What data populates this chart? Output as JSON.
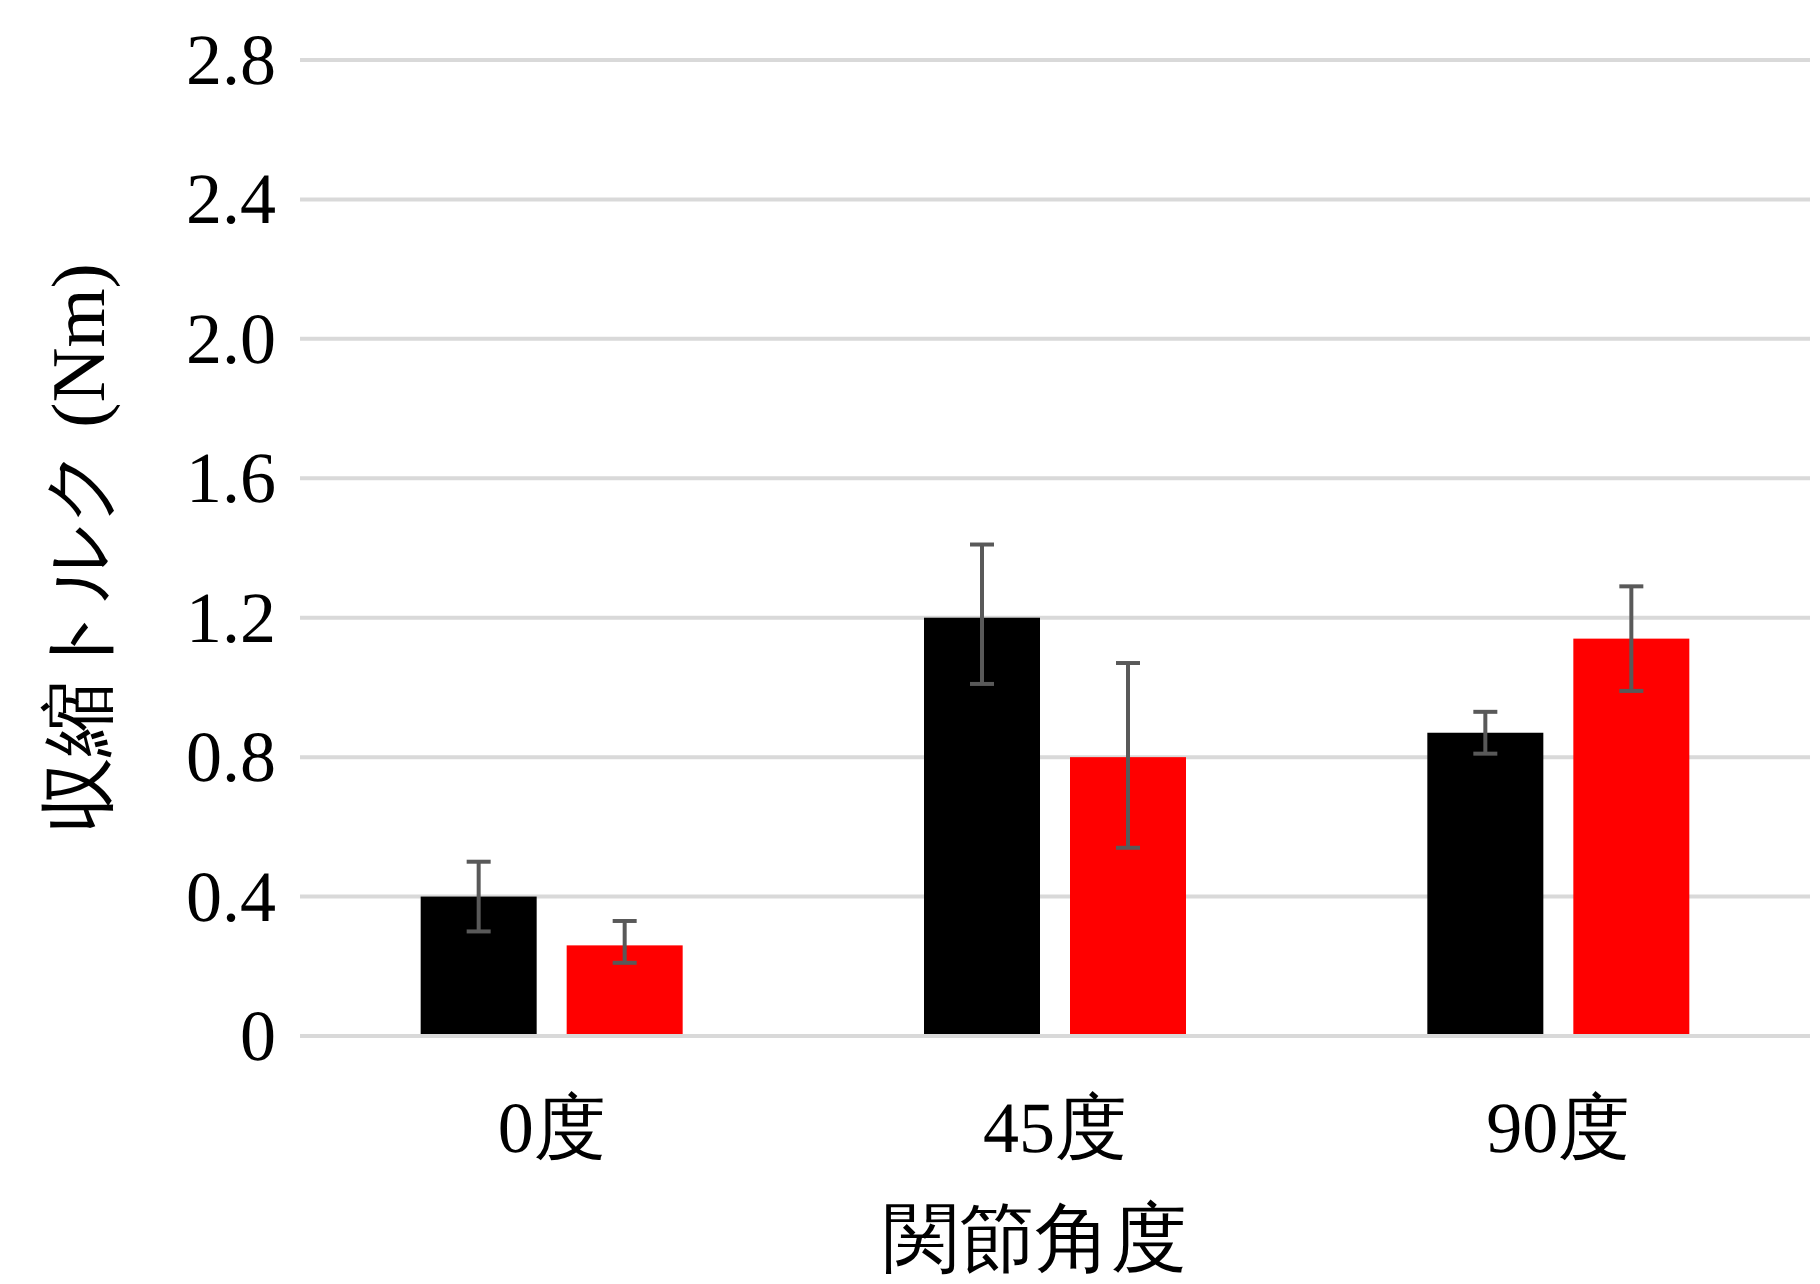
{
  "chart_data": {
    "type": "bar",
    "xlabel": "関節角度",
    "ylabel": "収縮トルク (Nm)",
    "categories": [
      "0度",
      "45度",
      "90度"
    ],
    "series": [
      {
        "color": "#000000",
        "values": [
          0.4,
          1.2,
          0.87
        ],
        "errors": [
          [
            0.3,
            0.5
          ],
          [
            1.01,
            1.41
          ],
          [
            0.81,
            0.93
          ]
        ]
      },
      {
        "color": "#ff0000",
        "values": [
          0.26,
          0.8,
          1.14
        ],
        "errors": [
          [
            0.21,
            0.33
          ],
          [
            0.54,
            1.07
          ],
          [
            0.99,
            1.29
          ]
        ]
      }
    ],
    "ylim": [
      0,
      2.8
    ],
    "yticks": [
      0,
      0.4,
      0.8,
      1.2,
      1.6,
      {
        "value": 2,
        "label": "2.0"
      },
      2.4,
      2.8
    ],
    "grid": "y"
  }
}
